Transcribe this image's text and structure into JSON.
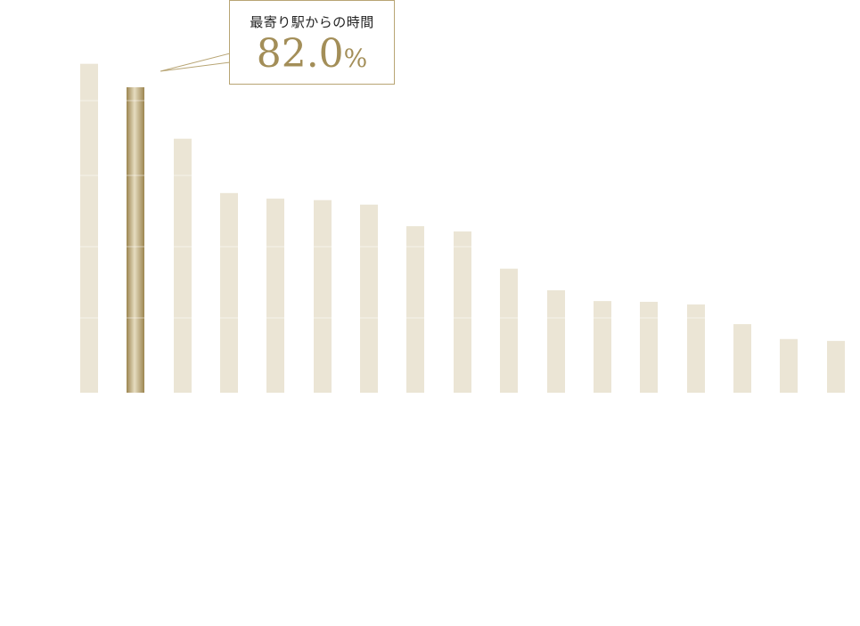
{
  "chart_data": {
    "type": "bar",
    "title": "",
    "xlabel": "",
    "ylabel": "",
    "ylim": [
      0,
      100
    ],
    "highlight_index": 1,
    "values": [
      88.3,
      82.0,
      68.2,
      53.6,
      52.1,
      51.7,
      50.5,
      44.7,
      43.3,
      33.3,
      27.5,
      24.6,
      24.4,
      23.7,
      18.4,
      14.4,
      13.9
    ],
    "annotation": {
      "label": "最寄り駅からの時間",
      "value": "82.0",
      "unit": "%"
    },
    "colors": {
      "bar": "#ebe5d5",
      "highlight": "#b5a06b",
      "callout_border": "#b8a574",
      "value_text": "#a38e58"
    }
  }
}
